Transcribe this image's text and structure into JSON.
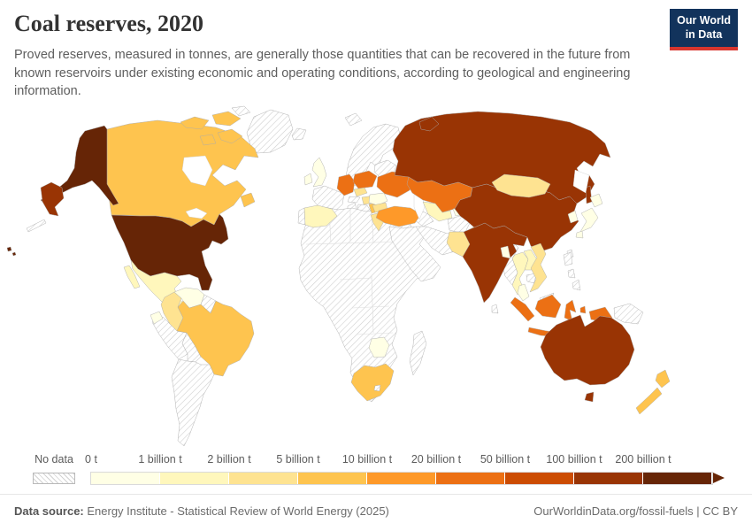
{
  "header": {
    "title": "Coal reserves, 2020",
    "subtitle": "Proved reserves, measured in tonnes, are generally those quantities that can be recovered in the future from known reservoirs under existing economic and operating conditions, according to geological and engineering information.",
    "logo": {
      "line1": "Our World",
      "line2": "in Data",
      "bg_color": "#12335c",
      "accent_color": "#d8362e"
    }
  },
  "legend": {
    "no_data_label": "No data",
    "bins": [
      {
        "label": "0 t",
        "color": "#ffffe5"
      },
      {
        "label": "1 billion t",
        "color": "#fff7bc"
      },
      {
        "label": "2 billion t",
        "color": "#fee391"
      },
      {
        "label": "5 billion t",
        "color": "#fec44f"
      },
      {
        "label": "10 billion t",
        "color": "#fe9929"
      },
      {
        "label": "20 billion t",
        "color": "#ec7014"
      },
      {
        "label": "50 billion t",
        "color": "#cc4c02"
      },
      {
        "label": "100 billion t",
        "color": "#993404"
      },
      {
        "label": "200 billion t",
        "color": "#662506"
      }
    ]
  },
  "map": {
    "ocean_color": "#ffffff",
    "no_data_pattern": "diagonal-hatch",
    "range_colors": {
      "0-1 billion t": "#ffffe5",
      "1-2 billion t": "#fff7bc",
      "2-5 billion t": "#fee391",
      "5-10 billion t": "#fec44f",
      "10-20 billion t": "#fe9929",
      "20-50 billion t": "#ec7014",
      "50-100 billion t": "#cc4c02",
      "100-200 billion t": "#993404",
      "200+ billion t": "#662506"
    },
    "countries": {
      "united-states": {
        "name": "United States",
        "range": "200+ billion t"
      },
      "russia": {
        "name": "Russia",
        "range": "100-200 billion t"
      },
      "china": {
        "name": "China",
        "range": "100-200 billion t"
      },
      "india": {
        "name": "India",
        "range": "100-200 billion t"
      },
      "australia": {
        "name": "Australia",
        "range": "100-200 billion t"
      },
      "germany": {
        "name": "Germany",
        "range": "20-50 billion t"
      },
      "poland": {
        "name": "Poland",
        "range": "20-50 billion t"
      },
      "ukraine": {
        "name": "Ukraine",
        "range": "20-50 billion t"
      },
      "kazakhstan": {
        "name": "Kazakhstan",
        "range": "20-50 billion t"
      },
      "indonesia": {
        "name": "Indonesia",
        "range": "20-50 billion t"
      },
      "turkey": {
        "name": "Turkey",
        "range": "10-20 billion t"
      },
      "canada": {
        "name": "Canada",
        "range": "5-10 billion t"
      },
      "brazil": {
        "name": "Brazil",
        "range": "5-10 billion t"
      },
      "south-africa": {
        "name": "South Africa",
        "range": "5-10 billion t"
      },
      "new-zealand": {
        "name": "New Zealand",
        "range": "5-10 billion t"
      },
      "serbia": {
        "name": "Serbia",
        "range": "5-10 billion t"
      },
      "colombia": {
        "name": "Colombia",
        "range": "2-5 billion t"
      },
      "mongolia": {
        "name": "Mongolia",
        "range": "2-5 billion t"
      },
      "pakistan": {
        "name": "Pakistan",
        "range": "2-5 billion t"
      },
      "vietnam": {
        "name": "Vietnam",
        "range": "2-5 billion t"
      },
      "czechia": {
        "name": "Czechia",
        "range": "2-5 billion t"
      },
      "hungary": {
        "name": "Hungary",
        "range": "2-5 billion t"
      },
      "greece": {
        "name": "Greece",
        "range": "2-5 billion t"
      },
      "bulgaria": {
        "name": "Bulgaria",
        "range": "2-5 billion t"
      },
      "mexico": {
        "name": "Mexico",
        "range": "1-2 billion t"
      },
      "spain": {
        "name": "Spain",
        "range": "1-2 billion t"
      },
      "thailand": {
        "name": "Thailand",
        "range": "1-2 billion t"
      },
      "laos": {
        "name": "Laos",
        "range": "1-2 billion t"
      },
      "uzbekistan": {
        "name": "Uzbekistan",
        "range": "1-2 billion t"
      },
      "venezuela": {
        "name": "Venezuela",
        "range": "0-1 billion t"
      },
      "united-kingdom": {
        "name": "United Kingdom",
        "range": "0-1 billion t"
      },
      "ireland": {
        "name": "Ireland",
        "range": "0-1 billion t"
      },
      "japan": {
        "name": "Japan",
        "range": "0-1 billion t"
      },
      "south-korea": {
        "name": "South Korea",
        "range": "0-1 billion t"
      },
      "zimbabwe": {
        "name": "Zimbabwe",
        "range": "0-1 billion t"
      },
      "romania": {
        "name": "Romania",
        "range": "0-1 billion t"
      },
      "bangladesh": {
        "name": "Bangladesh",
        "range": "0-1 billion t"
      },
      "malaysia": {
        "name": "Malaysia",
        "range": "0-1 billion t"
      },
      "kyrgyzstan": {
        "name": "Kyrgyzstan",
        "range": "0-1 billion t"
      },
      "ecuador": {
        "name": "Ecuador",
        "range": "0-1 billion t"
      },
      "guatemala": {
        "name": "Guatemala",
        "range": "0-1 billion t"
      }
    }
  },
  "footer": {
    "source_label": "Data source:",
    "source_text": " Energy Institute - Statistical Review of World Energy (2025)",
    "link_text": "OurWorldinData.org/fossil-fuels | CC BY"
  },
  "chart_data": {
    "type": "heatmap",
    "subtype": "choropleth-world-map",
    "title": "Coal reserves, 2020",
    "year": 2020,
    "unit": "tonnes",
    "legend_boundaries": [
      "0 t",
      "1 billion t",
      "2 billion t",
      "5 billion t",
      "10 billion t",
      "20 billion t",
      "50 billion t",
      "100 billion t",
      "200 billion t"
    ],
    "palette": [
      "#ffffe5",
      "#fff7bc",
      "#fee391",
      "#fec44f",
      "#fe9929",
      "#ec7014",
      "#cc4c02",
      "#993404",
      "#662506"
    ],
    "series": [
      {
        "entity": "United States",
        "range": "200+ billion t"
      },
      {
        "entity": "Russia",
        "range": "100-200 billion t"
      },
      {
        "entity": "China",
        "range": "100-200 billion t"
      },
      {
        "entity": "India",
        "range": "100-200 billion t"
      },
      {
        "entity": "Australia",
        "range": "100-200 billion t"
      },
      {
        "entity": "Germany",
        "range": "20-50 billion t"
      },
      {
        "entity": "Poland",
        "range": "20-50 billion t"
      },
      {
        "entity": "Ukraine",
        "range": "20-50 billion t"
      },
      {
        "entity": "Kazakhstan",
        "range": "20-50 billion t"
      },
      {
        "entity": "Indonesia",
        "range": "20-50 billion t"
      },
      {
        "entity": "Turkey",
        "range": "10-20 billion t"
      },
      {
        "entity": "Canada",
        "range": "5-10 billion t"
      },
      {
        "entity": "Brazil",
        "range": "5-10 billion t"
      },
      {
        "entity": "South Africa",
        "range": "5-10 billion t"
      },
      {
        "entity": "New Zealand",
        "range": "5-10 billion t"
      },
      {
        "entity": "Serbia",
        "range": "5-10 billion t"
      },
      {
        "entity": "Colombia",
        "range": "2-5 billion t"
      },
      {
        "entity": "Mongolia",
        "range": "2-5 billion t"
      },
      {
        "entity": "Pakistan",
        "range": "2-5 billion t"
      },
      {
        "entity": "Vietnam",
        "range": "2-5 billion t"
      },
      {
        "entity": "Czechia",
        "range": "2-5 billion t"
      },
      {
        "entity": "Hungary",
        "range": "2-5 billion t"
      },
      {
        "entity": "Greece",
        "range": "2-5 billion t"
      },
      {
        "entity": "Bulgaria",
        "range": "2-5 billion t"
      },
      {
        "entity": "Mexico",
        "range": "1-2 billion t"
      },
      {
        "entity": "Spain",
        "range": "1-2 billion t"
      },
      {
        "entity": "Thailand",
        "range": "1-2 billion t"
      },
      {
        "entity": "Laos",
        "range": "1-2 billion t"
      },
      {
        "entity": "Uzbekistan",
        "range": "1-2 billion t"
      },
      {
        "entity": "Venezuela",
        "range": "0-1 billion t"
      },
      {
        "entity": "United Kingdom",
        "range": "0-1 billion t"
      },
      {
        "entity": "Ireland",
        "range": "0-1 billion t"
      },
      {
        "entity": "Japan",
        "range": "0-1 billion t"
      },
      {
        "entity": "South Korea",
        "range": "0-1 billion t"
      },
      {
        "entity": "Zimbabwe",
        "range": "0-1 billion t"
      },
      {
        "entity": "Romania",
        "range": "0-1 billion t"
      },
      {
        "entity": "Bangladesh",
        "range": "0-1 billion t"
      },
      {
        "entity": "Malaysia",
        "range": "0-1 billion t"
      },
      {
        "entity": "Kyrgyzstan",
        "range": "0-1 billion t"
      },
      {
        "entity": "Ecuador",
        "range": "0-1 billion t"
      },
      {
        "entity": "Guatemala",
        "range": "0-1 billion t"
      }
    ],
    "no_data_regions": [
      "Greenland",
      "Iceland",
      "Norway",
      "Sweden",
      "Finland",
      "France",
      "Portugal",
      "Italy",
      "Austria",
      "Middle East",
      "Iran",
      "Afghanistan",
      "Myanmar",
      "Philippines",
      "Papua New Guinea",
      "North Korea",
      "Most of Africa",
      "Peru",
      "Bolivia",
      "Chile",
      "Argentina",
      "Cuba",
      "Madagascar"
    ],
    "legend_position": "bottom",
    "source": "Energy Institute - Statistical Review of World Energy (2025)"
  }
}
